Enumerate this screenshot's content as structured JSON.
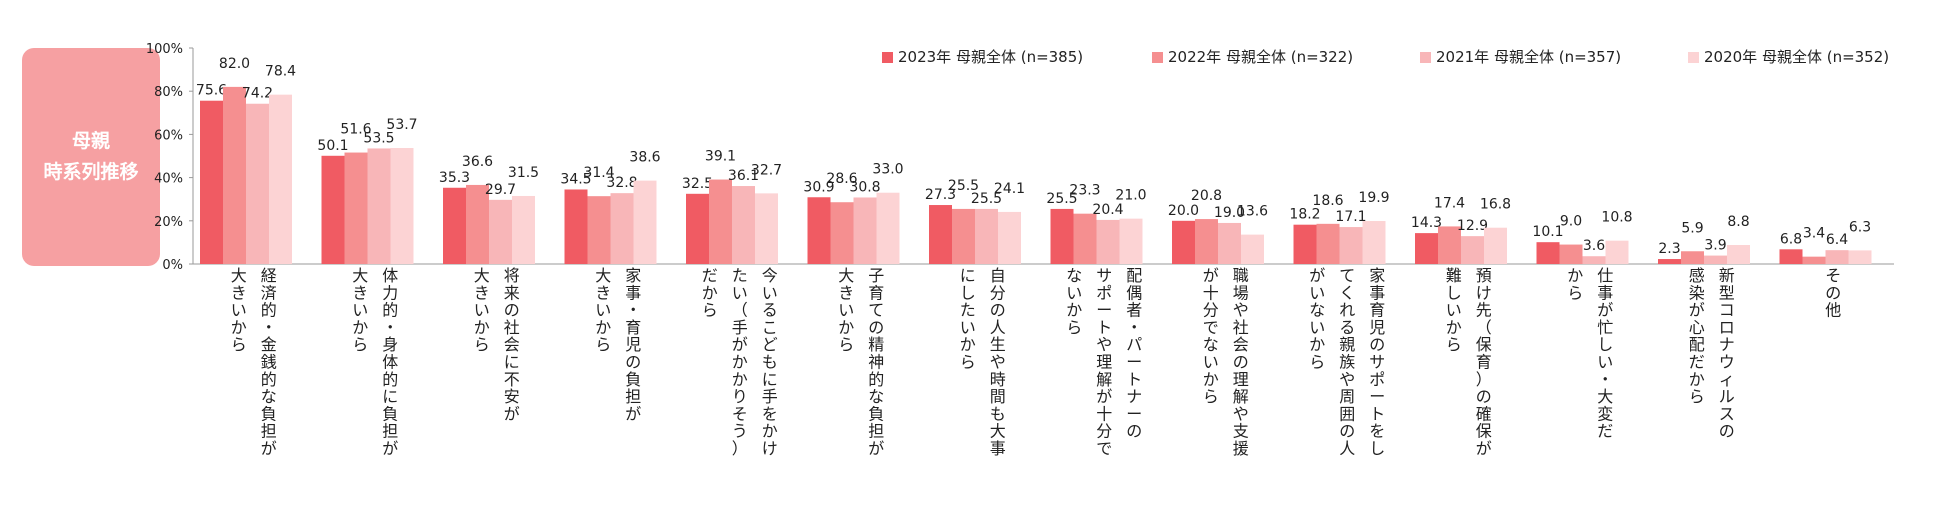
{
  "badge": {
    "line1": "母親",
    "line2": "時系列推移"
  },
  "colors": {
    "badge": "#f6a0a2",
    "series": [
      "#f05b63",
      "#f58f90",
      "#f8b6b8",
      "#fcd3d4"
    ],
    "axis": "#9a9a9a"
  },
  "chart_data": {
    "type": "bar",
    "title": "",
    "xlabel": "",
    "ylabel": "",
    "ylim": [
      0,
      100
    ],
    "y_ticks": [
      "0%",
      "20%",
      "40%",
      "60%",
      "80%",
      "100%"
    ],
    "legend_position": "top-right",
    "categories": [
      [
        "経済的・金銭的な負担が",
        "大きいから"
      ],
      [
        "体力的・身体的に負担が",
        "大きいから"
      ],
      [
        "将来の社会に不安が",
        "大きいから"
      ],
      [
        "家事・育児の負担が",
        "大きいから"
      ],
      [
        "今いるこどもに手をかけ",
        "たい（手がかかりそう）",
        "だから"
      ],
      [
        "子育ての精神的な負担が",
        "大きいから"
      ],
      [
        "自分の人生や時間も大事",
        "にしたいから"
      ],
      [
        "配偶者・パートナーの",
        "サポートや理解が十分で",
        "ないから"
      ],
      [
        "職場や社会の理解や支援",
        "が十分でないから"
      ],
      [
        "家事育児のサポートをし",
        "てくれる親族や周囲の人",
        "がいないから"
      ],
      [
        "預け先（保育）の確保が",
        "難しいから"
      ],
      [
        "仕事が忙しい・大変だ",
        "から"
      ],
      [
        "新型コロナウィルスの",
        "感染が心配だから"
      ],
      [
        "その他"
      ]
    ],
    "series": [
      {
        "name": "2023年 母親全体 (n=385)",
        "values": [
          75.6,
          50.1,
          35.3,
          34.5,
          32.5,
          30.9,
          27.3,
          25.5,
          20.0,
          18.2,
          14.3,
          10.1,
          2.3,
          6.8
        ]
      },
      {
        "name": "2022年 母親全体 (n=322)",
        "values": [
          82.0,
          51.6,
          36.6,
          31.4,
          39.1,
          28.6,
          25.5,
          23.3,
          20.8,
          18.6,
          17.4,
          9.0,
          5.9,
          3.4
        ]
      },
      {
        "name": "2021年 母親全体 (n=357)",
        "values": [
          74.2,
          53.5,
          29.7,
          32.8,
          36.1,
          30.8,
          25.5,
          20.4,
          19.0,
          17.1,
          12.9,
          3.6,
          3.9,
          6.4
        ]
      },
      {
        "name": "2020年 母親全体 (n=352)",
        "values": [
          78.4,
          53.7,
          31.5,
          38.6,
          32.7,
          33.0,
          24.1,
          21.0,
          13.6,
          19.9,
          16.8,
          10.8,
          8.8,
          6.3
        ]
      }
    ]
  }
}
